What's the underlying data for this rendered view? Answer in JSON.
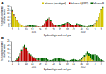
{
  "chart_data": [
    {
      "type": "bar",
      "stacked": true,
      "title": "A",
      "xlabel": "Epidemiologic week and year",
      "ylabel": "% through confirmed\ninfluenza cases",
      "categories": [
        "1",
        null,
        null,
        null,
        "5",
        null,
        null,
        null,
        null,
        "10",
        null,
        null,
        null,
        "14",
        null,
        null,
        null,
        null,
        "19",
        null,
        null,
        null,
        "23",
        null,
        null,
        null,
        null,
        "28",
        null,
        null,
        null,
        "32",
        null,
        null,
        null,
        null,
        "37",
        null,
        null,
        null,
        "41",
        null,
        null,
        null,
        null,
        "46",
        null,
        null,
        null,
        "50",
        null,
        null,
        null,
        null,
        "3",
        null,
        null,
        null,
        "7",
        null
      ],
      "series": [
        {
          "name": "Influenza (unsubtyped)",
          "color": "#d4c400",
          "values": [
            22,
            17,
            13,
            9,
            6,
            4,
            2,
            1,
            0.5,
            0.3,
            0.2,
            0.1,
            0.1,
            0.1,
            0.1,
            0.1,
            0.1,
            0.1,
            0.1,
            0.1,
            0.1,
            0.1,
            0.1,
            0.1,
            0.1,
            0.1,
            0.1,
            0.1,
            0.1,
            0.1,
            0.1,
            0.1,
            0.1,
            0.1,
            0.1,
            0.1,
            0.1,
            0.1,
            0.1,
            0.1,
            0.1,
            0.1,
            0.1,
            0.1,
            0.1,
            0.1,
            0.1,
            0.1,
            0.3,
            0.3,
            0.3,
            0.3,
            0.5,
            1.5,
            4,
            8,
            14,
            20,
            25,
            28
          ]
        },
        {
          "name": "Influenza A(H3N2)",
          "color": "#bb0000",
          "values": [
            2,
            1,
            1,
            0.5,
            0.3,
            0.2,
            0.1,
            0.1,
            0.1,
            0.5,
            1,
            0.5,
            0.2,
            0.2,
            0.2,
            0.5,
            1,
            0.5,
            0.3,
            0.2,
            1.5,
            4,
            8,
            10,
            12,
            8,
            5,
            3,
            2,
            1,
            0.5,
            0.5,
            1,
            2,
            3,
            4,
            5,
            4,
            3,
            2,
            1.5,
            2,
            3,
            2,
            1,
            0.5,
            0.3,
            0.2,
            0.2,
            0.2,
            0.2,
            0.2,
            0.3,
            0.5,
            0.5,
            0.3,
            0.2,
            0.2,
            0.2,
            0.2
          ]
        },
        {
          "name": "Influenza B",
          "color": "#006600",
          "values": [
            1,
            0.5,
            0.5,
            0.3,
            0.2,
            0.1,
            0.1,
            0.1,
            0.2,
            0.5,
            1,
            1.5,
            2,
            2,
            1.5,
            1,
            0.5,
            0.3,
            0.2,
            0.2,
            0.3,
            0.5,
            1,
            1.5,
            2,
            1.5,
            1,
            0.5,
            0.5,
            1,
            1.5,
            2,
            2.5,
            2,
            1.5,
            1.5,
            2,
            1.5,
            1,
            0.5,
            0.5,
            1,
            1.5,
            2,
            2.5,
            2,
            1.5,
            1,
            0.5,
            0.5,
            1,
            1.5,
            2,
            1.5,
            1,
            0.5,
            0.3,
            0.3,
            0.5,
            1
          ]
        }
      ],
      "ylim": [
        0,
        30
      ],
      "yticks": [
        0,
        5,
        10,
        15,
        20,
        25,
        30
      ],
      "annotations": [
        {
          "text": "2011",
          "x": 14
        },
        {
          "text": "2012",
          "x": 46
        }
      ],
      "legend": "upper right",
      "grid": false
    },
    {
      "type": "bar",
      "stacked": true,
      "title": "B",
      "xlabel": "Epidemiologic week and year",
      "ylabel": "% through confirmed\ninfluenza cases",
      "categories": [
        "1",
        null,
        null,
        null,
        "5",
        null,
        null,
        null,
        null,
        "10",
        null,
        null,
        null,
        "14",
        null,
        null,
        null,
        null,
        "19",
        null,
        null,
        null,
        "23",
        null,
        null,
        null,
        null,
        "28",
        null,
        null,
        null,
        "32",
        null,
        null,
        null,
        null,
        "37",
        null,
        null,
        null,
        "41",
        null,
        null,
        null,
        null,
        "46",
        null,
        null,
        null,
        "50",
        null,
        null,
        null,
        null,
        "3",
        null,
        null,
        null,
        "7",
        null
      ],
      "series": [
        {
          "color": "#d4c400",
          "values": [
            0.1,
            0.1,
            0.1,
            0.1,
            0.1,
            0.1,
            0.1,
            0.1,
            0.1,
            0.1,
            0.1,
            0.1,
            0.1,
            0.1,
            0.1,
            0.1,
            0.1,
            0.1,
            0.1,
            0.1,
            0.1,
            0.1,
            0.1,
            0.1,
            0.1,
            0.1,
            0.1,
            0.1,
            0.1,
            0.1,
            0.1,
            0.1,
            0.1,
            0.1,
            0.1,
            0.1,
            0.1,
            0.1,
            0.1,
            0.1,
            0.1,
            0.1,
            0.1,
            0.5,
            1,
            2,
            3,
            5,
            7,
            8,
            6,
            4,
            2,
            1,
            0.5,
            0.3,
            0.2,
            0.2,
            0.2,
            0.2
          ]
        },
        {
          "color": "#bb0000",
          "values": [
            0.5,
            0.5,
            1,
            2,
            4,
            8,
            12,
            16,
            18,
            15,
            12,
            9,
            7,
            5,
            4,
            3,
            2,
            1.5,
            1,
            0.5,
            0.3,
            0.5,
            1,
            0.3,
            0.2,
            0.2,
            0.2,
            0.2,
            0.2,
            0.2,
            0.2,
            0.2,
            0.2,
            0.2,
            0.2,
            0.2,
            0.2,
            0.2,
            0.2,
            0.2,
            0.2,
            0.2,
            0.2,
            0.2,
            0.2,
            0.2,
            0.2,
            0.2,
            0.2,
            0.2,
            0.2,
            0.2,
            0.2,
            0.2,
            0.2,
            0.2,
            0.2,
            0.2,
            0.2,
            0.2
          ]
        },
        {
          "color": "#006600",
          "values": [
            0.3,
            0.3,
            0.5,
            1,
            1.5,
            2,
            2,
            2.5,
            2,
            1.5,
            1,
            1,
            1,
            0.5,
            0.5,
            1,
            1.5,
            2,
            2.5,
            3,
            3.5,
            3,
            2.5,
            2,
            1.5,
            1.5,
            2,
            2.5,
            3,
            3.5,
            4,
            3.5,
            3,
            2.5,
            2,
            1.5,
            1,
            1,
            1.5,
            2,
            2.5,
            2,
            1.5,
            1,
            1,
            1.5,
            2,
            2.5,
            3,
            3.5,
            4,
            5,
            6,
            7,
            8,
            7,
            5,
            3,
            2,
            1
          ]
        }
      ],
      "ylim": [
        0,
        25
      ],
      "yticks": [
        0,
        5,
        10,
        15,
        20,
        25
      ],
      "annotations": [
        {
          "text": "2011",
          "x": 14
        },
        {
          "text": "2012",
          "x": 46
        }
      ],
      "grid": false
    }
  ]
}
